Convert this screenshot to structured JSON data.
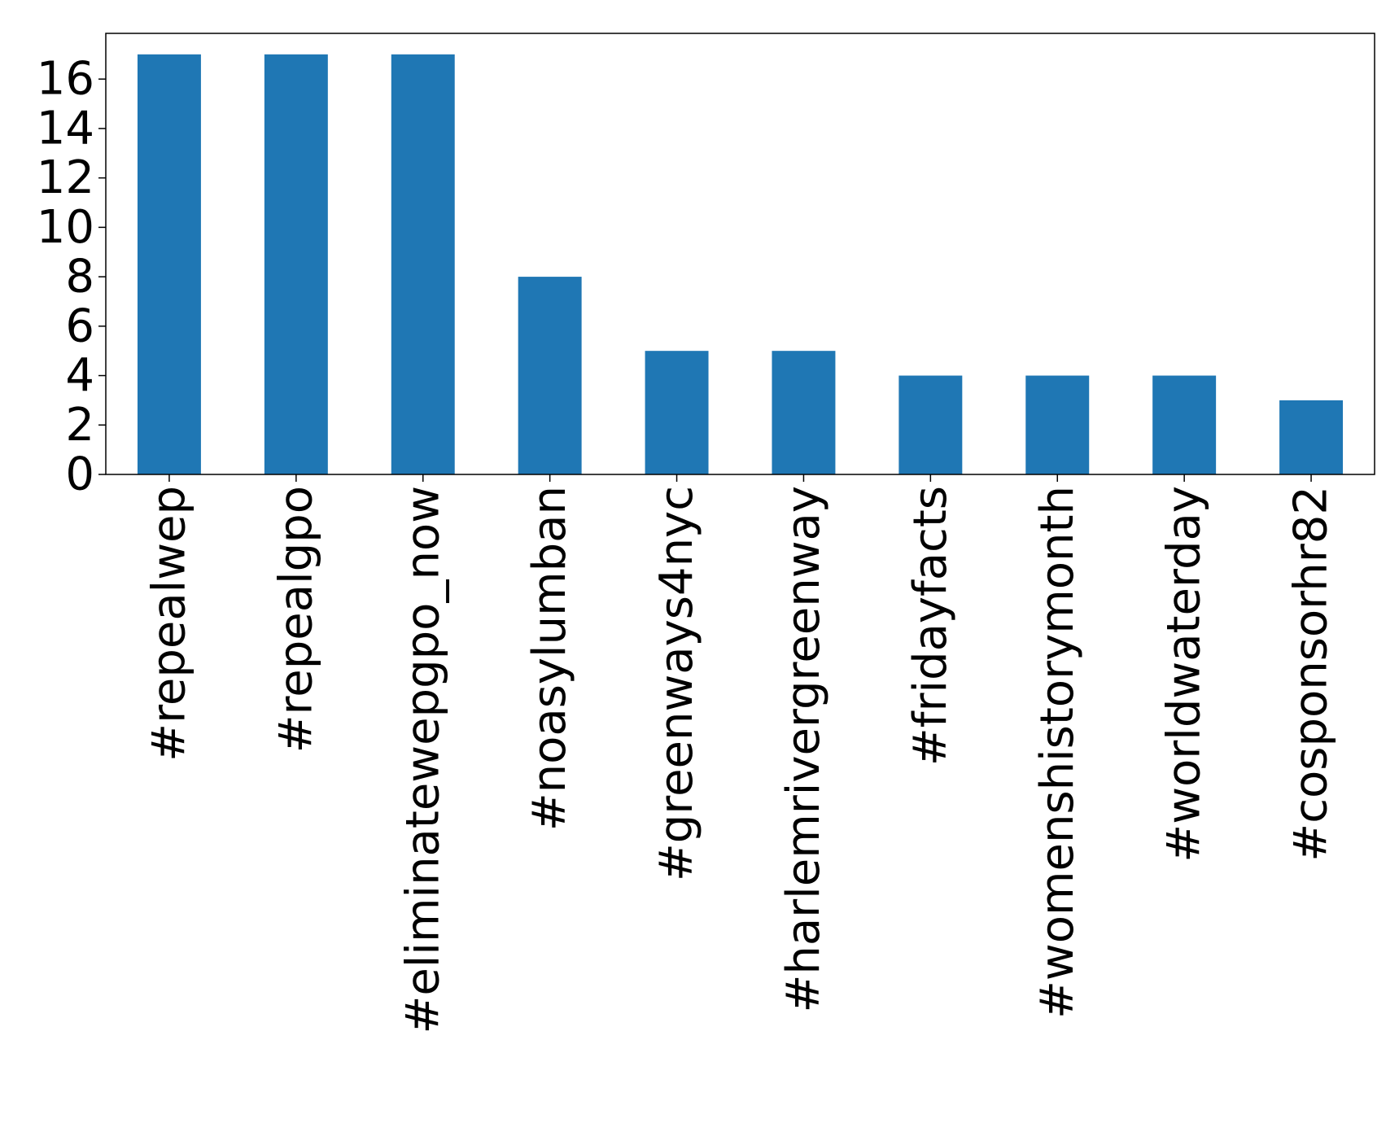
{
  "chart_data": {
    "type": "bar",
    "title": "",
    "xlabel": "",
    "ylabel": "",
    "categories": [
      "#repealwep",
      "#repealgpo",
      "#eliminatewepgpo_now",
      "#noasylumban",
      "#greenways4nyc",
      "#harlemrivergreenway",
      "#fridayfacts",
      "#womenshistorymonth",
      "#worldwaterday",
      "#cosponsorhr82"
    ],
    "values": [
      17,
      17,
      17,
      8,
      5,
      5,
      4,
      4,
      4,
      3
    ],
    "yticks": [
      "0",
      "2",
      "4",
      "6",
      "8",
      "10",
      "12",
      "14",
      "16"
    ],
    "ylim": [
      0,
      17.85
    ],
    "grid": false,
    "legend": "none",
    "bar_color": "#1f77b4"
  }
}
